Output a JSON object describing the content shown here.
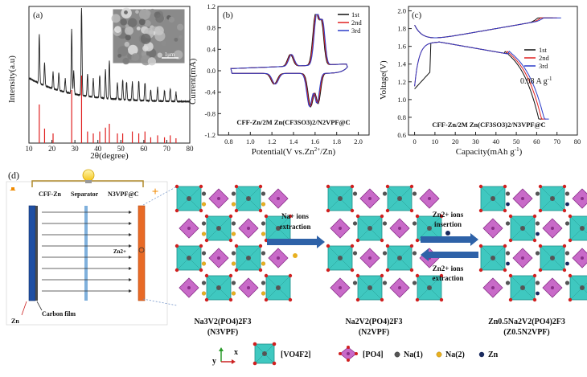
{
  "panel_a": {
    "label": "(a)",
    "ylabel": "Intensity(a.u)",
    "xlabel": "2θ(degree)",
    "xticks": [
      "10",
      "20",
      "30",
      "40",
      "50",
      "60",
      "70",
      "80"
    ],
    "inset_scale": "1μm",
    "colors": {
      "pattern": "#222222",
      "reference": "#e02020"
    }
  },
  "panel_b": {
    "label": "(b)",
    "ylabel": "Current(mA)",
    "xlabel": "Potential(V vs.Zn",
    "xlabel_sup": "2+",
    "xlabel_end": "/Zn)",
    "yticks": [
      "1.2",
      "0.8",
      "0.4",
      "0.0",
      "-0.4",
      "-0.8",
      "-1.2"
    ],
    "xticks": [
      "0.8",
      "1.0",
      "1.2",
      "1.4",
      "1.6",
      "1.8",
      "2.0"
    ],
    "legend": [
      "1st",
      "2nd",
      "3rd"
    ],
    "system": "CFF-Zn/2M Zn(CF3SO3)2/N2VPF@C"
  },
  "panel_c": {
    "label": "(c)",
    "ylabel": "Voltage(V)",
    "xlabel": "Capacity(mAh g",
    "xlabel_sup": "-1",
    "xlabel_end": ")",
    "yticks": [
      "2.0",
      "1.8",
      "1.6",
      "1.4",
      "1.2",
      "1.0",
      "0.8",
      "0.6"
    ],
    "xticks": [
      "0",
      "10",
      "20",
      "30",
      "40",
      "50",
      "60",
      "70",
      "80"
    ],
    "legend": [
      "1st",
      "2nd",
      "3rd"
    ],
    "rate": "0.08 A g",
    "rate_sup": "-1",
    "system": "CFF-Zn/2M Zn(CF3SO3)2/N3VPF@C"
  },
  "series_colors": [
    "#111111",
    "#e02020",
    "#2a3cc8"
  ],
  "panel_d": {
    "label": "(d)",
    "cell": {
      "anode": "CFF-Zn",
      "separator": "Separator",
      "cathode": "N3VPF@C",
      "ion": "Zn2+",
      "zn_label": "Zn",
      "carbon_label": "Carbon film",
      "minus": "−",
      "plus": "+"
    },
    "arrow1": {
      "line1": "Na+ ions",
      "line2": "extraction"
    },
    "arrow2": {
      "line1": "Zn2+ ions",
      "line2": "insertion"
    },
    "arrow3": {
      "line1": "Zn2+ ions",
      "line2": "extraction"
    },
    "structures": [
      {
        "formula": "Na3V2(PO4)2F3",
        "abbr": "(N3VPF)"
      },
      {
        "formula": "Na2V2(PO4)2F3",
        "abbr": "(N2VPF)"
      },
      {
        "formula": "Zn0.5Na2V2(PO4)2F3",
        "abbr": "(Z0.5N2VPF)"
      }
    ],
    "legend": {
      "axis_y": "y",
      "axis_x": "x",
      "vo": "[VO4F2]",
      "po": "[PO4]",
      "na1": "Na(1)",
      "na2": "Na(2)",
      "zn": "Zn"
    }
  }
}
